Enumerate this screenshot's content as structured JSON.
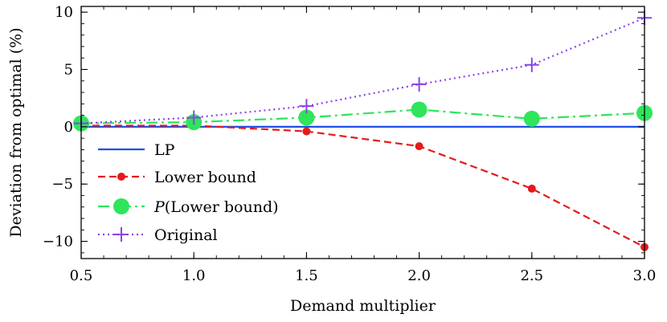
{
  "chart_data": {
    "type": "line",
    "title": "",
    "xlabel": "Demand multiplier",
    "ylabel": "Deviation from optimal (%)",
    "xlim": [
      0.5,
      3.0
    ],
    "ylim": [
      -11.5,
      10.5
    ],
    "xticks": [
      "0.5",
      "1.0",
      "1.5",
      "2.0",
      "2.5",
      "3.0"
    ],
    "yticks": [
      "10",
      "5",
      "0",
      "−5",
      "−10"
    ],
    "x": [
      0.5,
      1.0,
      1.5,
      2.0,
      2.5,
      3.0
    ],
    "legend_position": "lower-left",
    "series": [
      {
        "name": "LP",
        "label_parts": [
          "LP"
        ],
        "values": [
          0,
          0,
          0,
          0,
          0,
          0
        ],
        "color": "#1f4fe8",
        "style": "solid",
        "marker": "none"
      },
      {
        "name": "Lower bound",
        "label_parts": [
          "Lower bound"
        ],
        "values": [
          0.1,
          0.1,
          -0.4,
          -1.7,
          -5.4,
          -10.5
        ],
        "color": "#e41a1c",
        "style": "dashed",
        "marker": "dot"
      },
      {
        "name": "P(Lower bound)",
        "label_parts": [
          "P",
          "(Lower bound)"
        ],
        "values": [
          0.3,
          0.4,
          0.8,
          1.5,
          0.7,
          1.2
        ],
        "color": "#2ee55b",
        "style": "dashdot",
        "marker": "bigdot"
      },
      {
        "name": "Original",
        "label_parts": [
          "Original"
        ],
        "values": [
          0.3,
          0.8,
          1.8,
          3.7,
          5.4,
          9.5
        ],
        "color": "#8b44e8",
        "style": "dotted",
        "marker": "plus"
      }
    ]
  }
}
